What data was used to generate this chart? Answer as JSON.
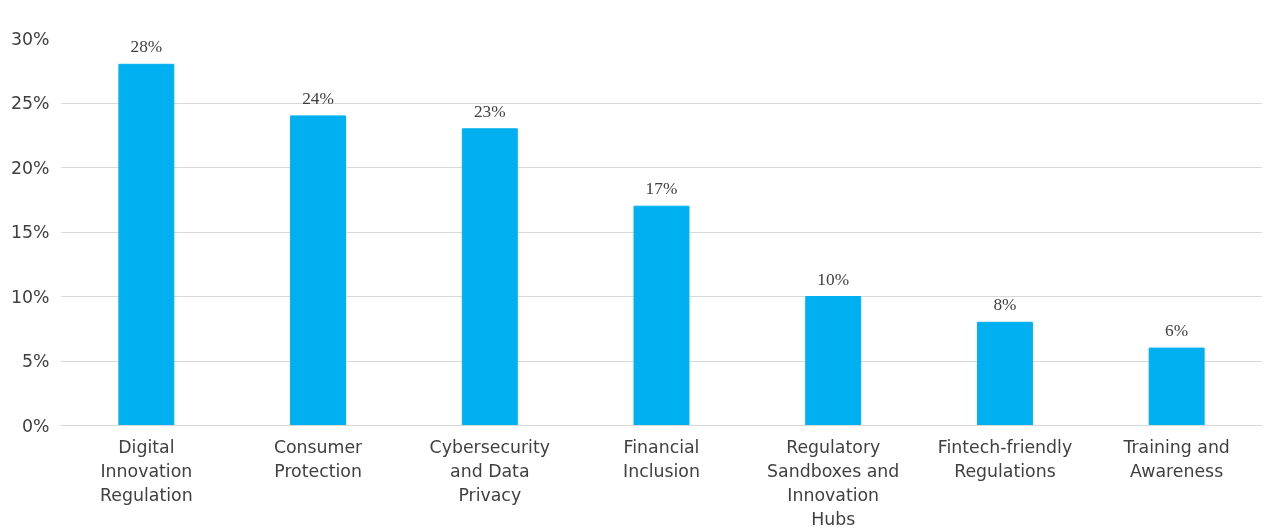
{
  "chart_data": {
    "type": "bar",
    "categories": [
      "Digital Innovation Regulation",
      "Consumer Protection",
      "Cybersecurity and Data Privacy",
      "Financial Inclusion",
      "Regulatory Sandboxes and Innovation Hubs",
      "Fintech-friendly Regulations",
      "Training and Awareness"
    ],
    "values": [
      28,
      24,
      23,
      17,
      10,
      8,
      6
    ],
    "value_labels": [
      "28%",
      "24%",
      "23%",
      "17%",
      "10%",
      "8%",
      "6%"
    ],
    "color": "#00b0f0",
    "ylim": [
      0,
      30
    ],
    "yticks": [
      {
        "value": 0,
        "label": "0%"
      },
      {
        "value": 5,
        "label": "5%"
      },
      {
        "value": 10,
        "label": "10%"
      },
      {
        "value": 15,
        "label": "15%"
      },
      {
        "value": 20,
        "label": "20%"
      },
      {
        "value": 25,
        "label": "25%"
      },
      {
        "value": 30,
        "label": "30%"
      }
    ],
    "grid": "y"
  }
}
